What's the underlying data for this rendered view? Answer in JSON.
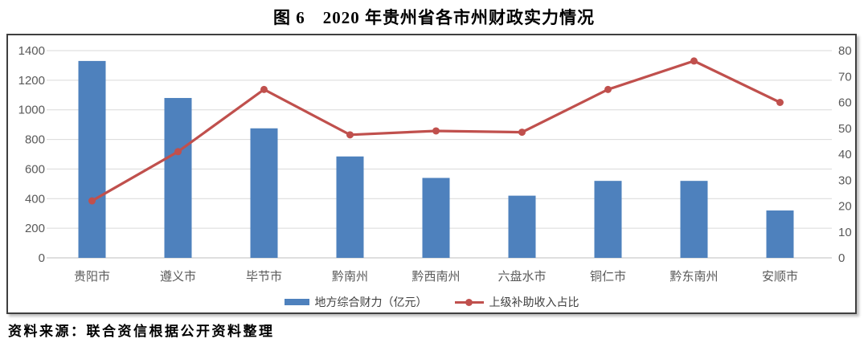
{
  "page": {
    "title": "图 6　2020 年贵州省各市州财政实力情况",
    "source_note": "资料来源：联合资信根据公开资料整理"
  },
  "colors": {
    "bar": "#4E81BD",
    "line": "#C0504D",
    "grid": "#D9D9D9",
    "axis_line": "#BFBFBF",
    "axis_text": "#595959",
    "frame_border": "#3F3F3F"
  },
  "chart_data": {
    "type": "combo-bar-line",
    "title": "图 6　2020 年贵州省各市州财政实力情况",
    "categories": [
      "贵阳市",
      "遵义市",
      "毕节市",
      "黔南州",
      "黔西南州",
      "六盘水市",
      "铜仁市",
      "黔东南州",
      "安顺市"
    ],
    "series": [
      {
        "name": "地方综合财力（亿元）",
        "type": "bar",
        "axis": "left",
        "color": "#4E81BD",
        "values": [
          1330,
          1080,
          875,
          685,
          540,
          420,
          520,
          520,
          320
        ]
      },
      {
        "name": "上级补助收入占比",
        "type": "line",
        "axis": "right",
        "color": "#C0504D",
        "values": [
          22,
          41,
          65,
          47.5,
          49,
          48.5,
          65,
          76,
          60
        ]
      }
    ],
    "left_axis": {
      "min": 0,
      "max": 1400,
      "step": 200,
      "ticks": [
        0,
        200,
        400,
        600,
        800,
        1000,
        1200,
        1400
      ]
    },
    "right_axis": {
      "min": 0,
      "max": 80,
      "step": 10,
      "ticks": [
        0,
        10,
        20,
        30,
        40,
        50,
        60,
        70,
        80
      ]
    },
    "grid": true,
    "legend_position": "bottom"
  }
}
